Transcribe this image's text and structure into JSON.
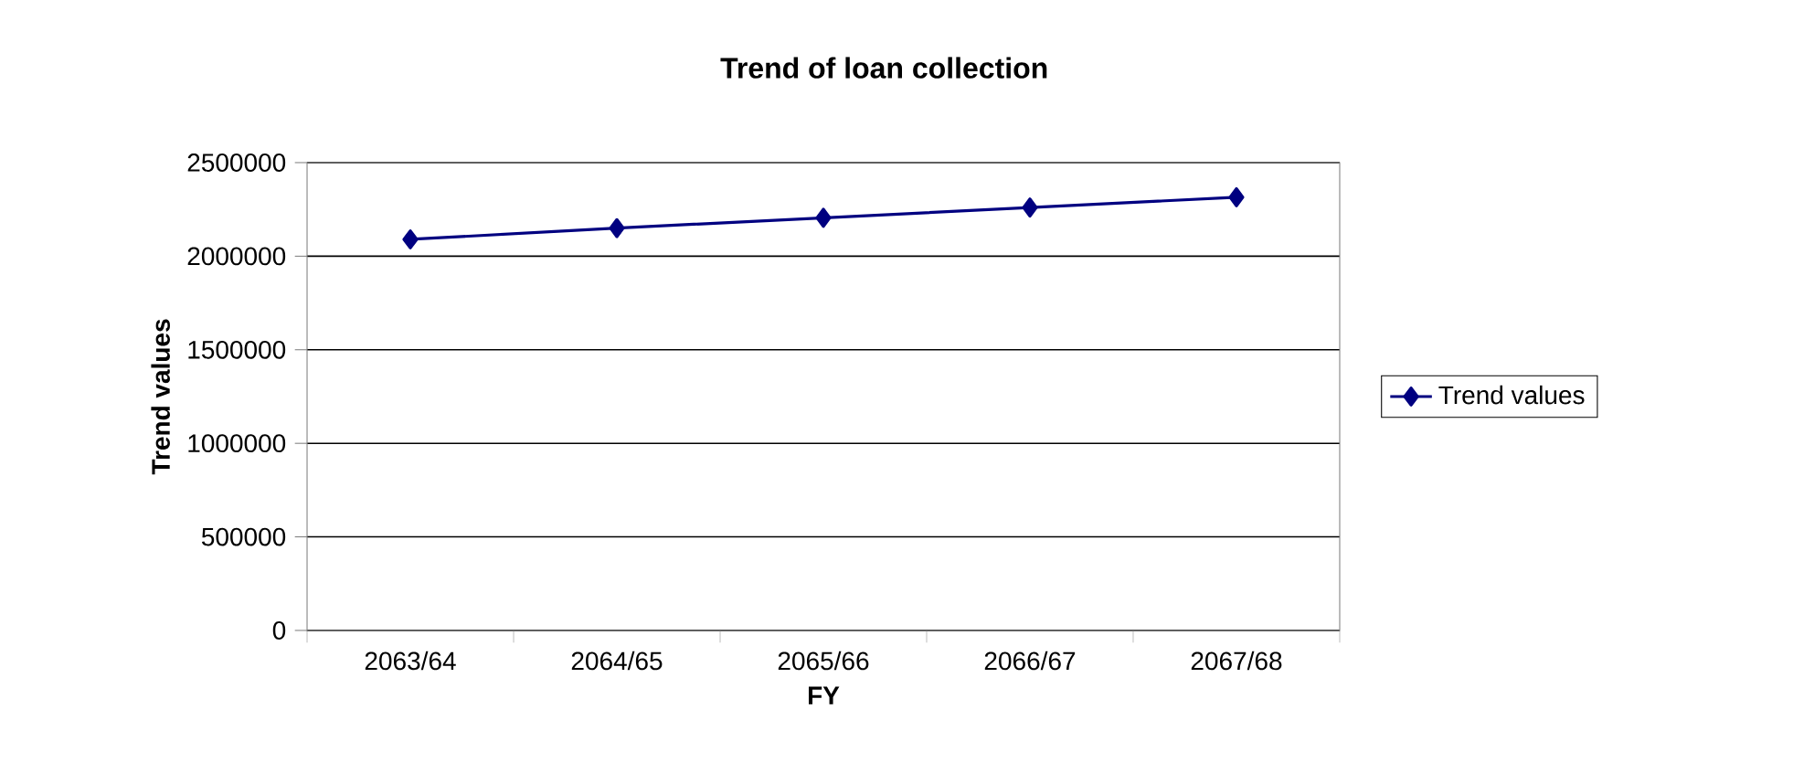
{
  "chart_data": {
    "type": "line",
    "title": "Trend of loan collection",
    "xlabel": "FY",
    "ylabel": "Trend values",
    "categories": [
      "2063/64",
      "2064/65",
      "2065/66",
      "2066/67",
      "2067/68"
    ],
    "series": [
      {
        "name": "Trend values",
        "color": "#000080",
        "values": [
          2090000,
          2150000,
          2205000,
          2260000,
          2315000
        ]
      }
    ],
    "ylim": [
      0,
      2500000
    ],
    "yticks": [
      0,
      500000,
      1000000,
      1500000,
      2000000,
      2500000
    ],
    "grid": "y",
    "legend": "right",
    "marker": "diamond"
  }
}
